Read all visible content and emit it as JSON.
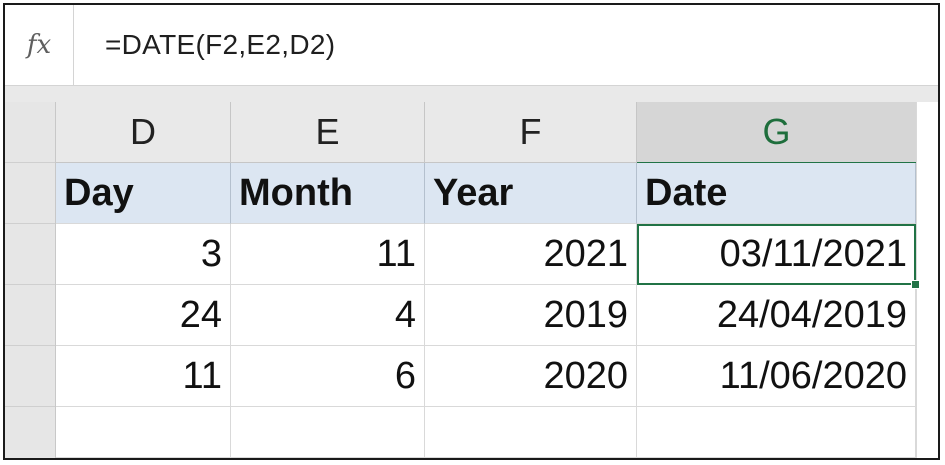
{
  "formula_bar": {
    "fx_label": "fx",
    "formula": "=DATE(F2,E2,D2)"
  },
  "columns": [
    "D",
    "E",
    "F",
    "G"
  ],
  "selected_column": "G",
  "headers": [
    "Day",
    "Month",
    "Year",
    "Date"
  ],
  "rows": [
    [
      "3",
      "11",
      "2021",
      "03/11/2021"
    ],
    [
      "24",
      "4",
      "2019",
      "24/04/2019"
    ],
    [
      "11",
      "6",
      "2020",
      "11/06/2020"
    ]
  ],
  "colors": {
    "header_fill": "#dce6f2",
    "selection_accent": "#217346"
  }
}
